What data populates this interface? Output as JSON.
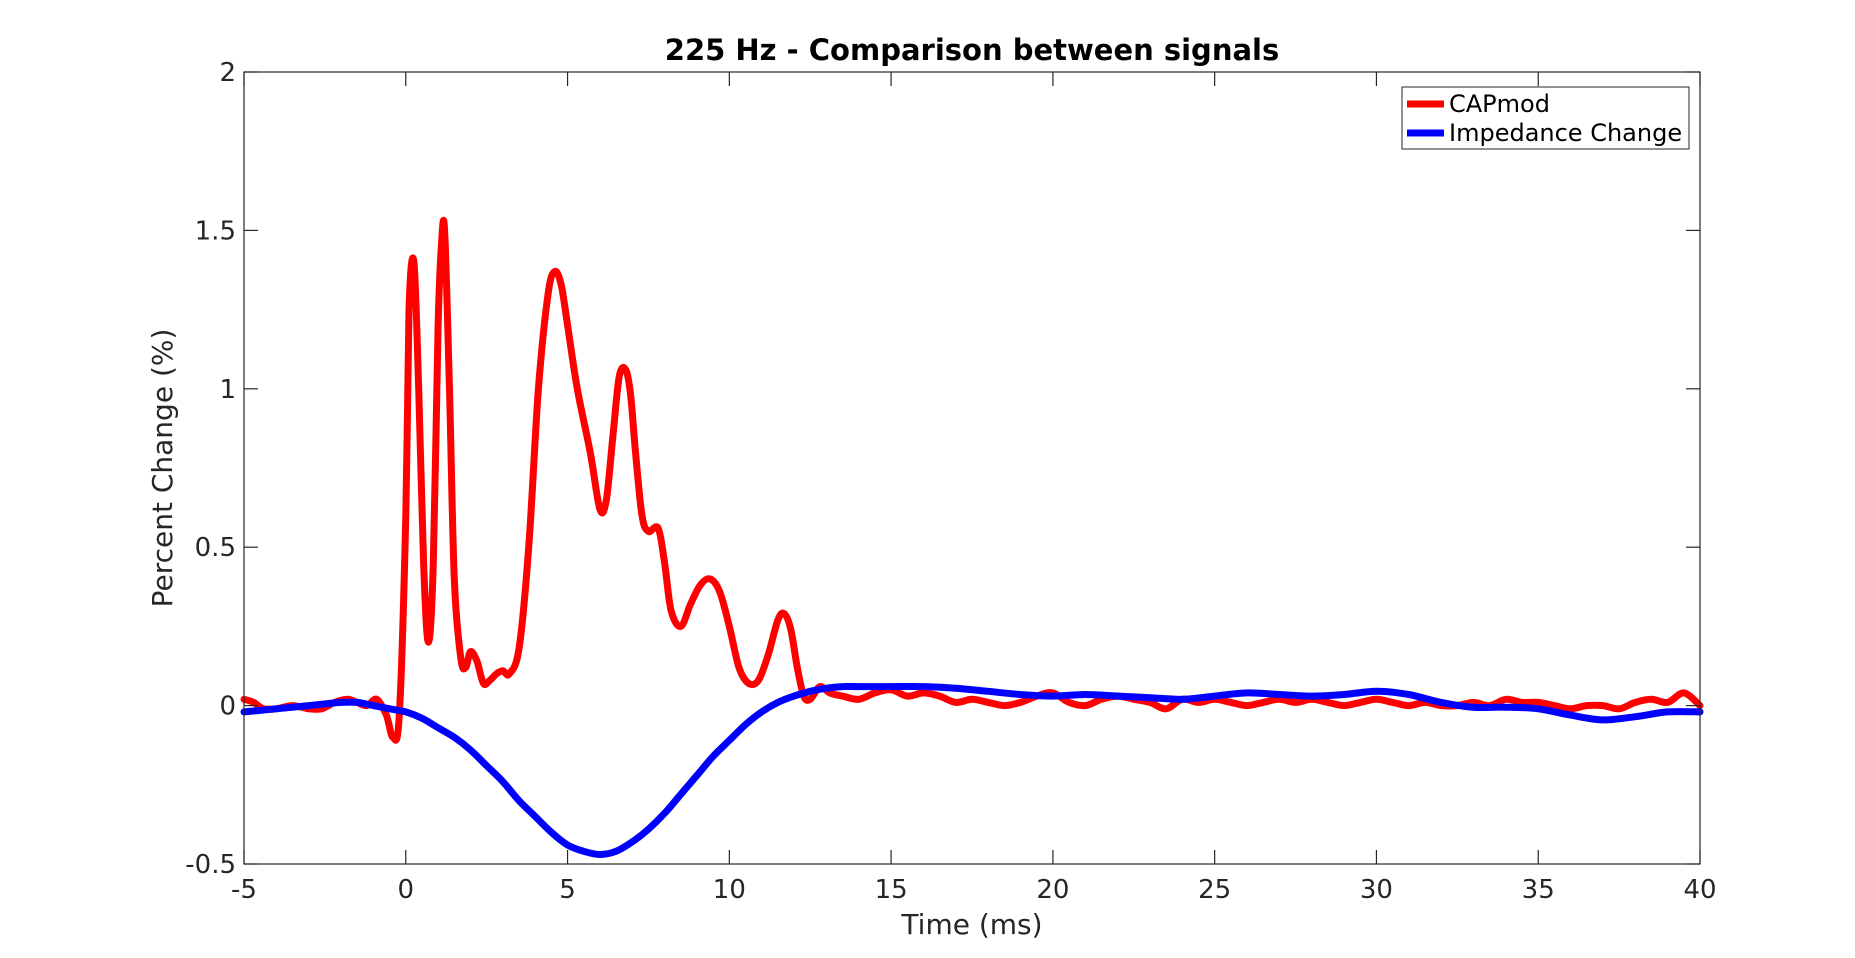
{
  "chart_data": {
    "type": "line",
    "title": "225 Hz - Comparison between signals",
    "xlabel": "Time (ms)",
    "ylabel": "Percent Change (%)",
    "xlim": [
      -5,
      40
    ],
    "ylim": [
      -0.5,
      2
    ],
    "xticks": [
      -5,
      0,
      5,
      10,
      15,
      20,
      25,
      30,
      35,
      40
    ],
    "yticks": [
      -0.5,
      0,
      0.5,
      1,
      1.5,
      2
    ],
    "xtick_labels": [
      "-5",
      "0",
      "5",
      "10",
      "15",
      "20",
      "25",
      "30",
      "35",
      "40"
    ],
    "ytick_labels": [
      "-0.5",
      "0",
      "0.5",
      "1",
      "1.5",
      "2"
    ],
    "grid": false,
    "legend_position": "top-right",
    "series": [
      {
        "name": "CAPmod",
        "color": "#ff0000",
        "x": [
          -5,
          -4.7,
          -4.4,
          -4.0,
          -3.5,
          -3.0,
          -2.6,
          -2.2,
          -1.8,
          -1.5,
          -1.2,
          -0.9,
          -0.6,
          -0.4,
          -0.2,
          0.0,
          0.1,
          0.25,
          0.4,
          0.55,
          0.7,
          0.85,
          1.0,
          1.1,
          1.2,
          1.35,
          1.5,
          1.7,
          1.85,
          2.0,
          2.2,
          2.4,
          2.6,
          2.8,
          3.0,
          3.2,
          3.5,
          3.8,
          4.1,
          4.4,
          4.6,
          4.8,
          5.0,
          5.3,
          5.7,
          6.0,
          6.2,
          6.4,
          6.6,
          6.8,
          6.95,
          7.1,
          7.3,
          7.5,
          7.8,
          8.0,
          8.2,
          8.5,
          8.8,
          9.1,
          9.4,
          9.7,
          10.0,
          10.3,
          10.6,
          10.9,
          11.2,
          11.5,
          11.7,
          11.9,
          12.1,
          12.3,
          12.5,
          12.8,
          13.1,
          13.5,
          14,
          14.5,
          15,
          15.5,
          16,
          16.5,
          17,
          17.5,
          18,
          18.5,
          19,
          19.5,
          20,
          20.5,
          21,
          21.5,
          22,
          22.5,
          23,
          23.5,
          24,
          24.5,
          25,
          25.5,
          26,
          26.5,
          27,
          27.5,
          28,
          28.5,
          29,
          29.5,
          30,
          30.5,
          31,
          31.5,
          32,
          32.5,
          33,
          33.5,
          34,
          34.5,
          35,
          35.5,
          36,
          36.5,
          37,
          37.5,
          38,
          38.5,
          39,
          39.5,
          40
        ],
        "y": [
          0.02,
          0.01,
          -0.01,
          -0.01,
          0.0,
          -0.01,
          -0.01,
          0.01,
          0.02,
          0.01,
          0.0,
          0.02,
          -0.03,
          -0.1,
          -0.03,
          0.6,
          1.25,
          1.4,
          1.0,
          0.45,
          0.2,
          0.45,
          1.2,
          1.45,
          1.5,
          1.0,
          0.4,
          0.15,
          0.12,
          0.17,
          0.14,
          0.07,
          0.08,
          0.1,
          0.11,
          0.1,
          0.18,
          0.5,
          1.0,
          1.3,
          1.37,
          1.33,
          1.2,
          1.0,
          0.8,
          0.62,
          0.65,
          0.85,
          1.04,
          1.06,
          0.98,
          0.8,
          0.6,
          0.55,
          0.56,
          0.45,
          0.3,
          0.25,
          0.32,
          0.38,
          0.4,
          0.36,
          0.25,
          0.12,
          0.07,
          0.08,
          0.16,
          0.27,
          0.29,
          0.24,
          0.12,
          0.03,
          0.02,
          0.06,
          0.04,
          0.03,
          0.02,
          0.04,
          0.05,
          0.03,
          0.04,
          0.03,
          0.01,
          0.02,
          0.01,
          0.0,
          0.01,
          0.03,
          0.04,
          0.01,
          0.0,
          0.02,
          0.03,
          0.02,
          0.01,
          -0.01,
          0.02,
          0.01,
          0.02,
          0.01,
          0.0,
          0.01,
          0.02,
          0.01,
          0.02,
          0.01,
          0.0,
          0.01,
          0.02,
          0.01,
          0.0,
          0.01,
          0.0,
          0.0,
          0.01,
          0.0,
          0.02,
          0.01,
          0.01,
          0.0,
          -0.01,
          0.0,
          0.0,
          -0.01,
          0.01,
          0.02,
          0.01,
          0.04,
          0.0
        ]
      },
      {
        "name": "Impedance Change",
        "color": "#0000ff",
        "x": [
          -5,
          -4,
          -3,
          -2,
          -1.5,
          -1,
          -0.5,
          0,
          0.5,
          1,
          1.5,
          2,
          2.5,
          3,
          3.5,
          4,
          4.5,
          5,
          5.5,
          6,
          6.5,
          7,
          7.5,
          8,
          8.5,
          9,
          9.5,
          10,
          10.5,
          11,
          11.5,
          12,
          12.5,
          13,
          13.5,
          14,
          15,
          16,
          17,
          18,
          19,
          20,
          21,
          22,
          23,
          24,
          25,
          26,
          27,
          28,
          29,
          30,
          31,
          32,
          33,
          34,
          35,
          36,
          37,
          38,
          39,
          40
        ],
        "y": [
          -0.02,
          -0.01,
          0.0,
          0.01,
          0.01,
          0.0,
          -0.01,
          -0.02,
          -0.04,
          -0.07,
          -0.1,
          -0.14,
          -0.19,
          -0.24,
          -0.3,
          -0.35,
          -0.4,
          -0.44,
          -0.46,
          -0.47,
          -0.46,
          -0.43,
          -0.39,
          -0.34,
          -0.28,
          -0.22,
          -0.16,
          -0.11,
          -0.06,
          -0.02,
          0.01,
          0.03,
          0.045,
          0.055,
          0.06,
          0.06,
          0.06,
          0.06,
          0.055,
          0.045,
          0.035,
          0.03,
          0.035,
          0.03,
          0.025,
          0.02,
          0.03,
          0.04,
          0.035,
          0.03,
          0.035,
          0.045,
          0.035,
          0.01,
          -0.005,
          -0.005,
          -0.01,
          -0.03,
          -0.045,
          -0.035,
          -0.02,
          -0.02
        ]
      }
    ]
  }
}
